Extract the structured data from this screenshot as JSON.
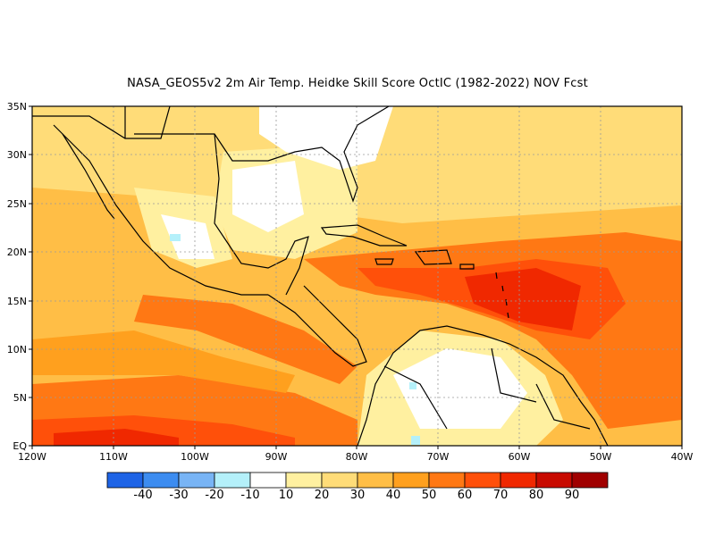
{
  "title": "NASA_GEOS5v2  2m Air Temp. Heidke Skill Score OctIC (1982-2022) NOV Fcst",
  "lat_labels": [
    "35N",
    "30N",
    "25N",
    "20N",
    "15N",
    "10N",
    "5N",
    "EQ"
  ],
  "lon_labels": [
    "120W",
    "110W",
    "100W",
    "90W",
    "80W",
    "70W",
    "60W",
    "50W",
    "40W"
  ],
  "colorbar": {
    "colors": [
      "#1e64e6",
      "#3c8cf0",
      "#78b4f5",
      "#b4f0fa",
      "#ffffff",
      "#fff0a0",
      "#ffdc78",
      "#ffbe46",
      "#ffa01e",
      "#ff7814",
      "#ff500a",
      "#f02800",
      "#c80a00",
      "#a00000"
    ],
    "labels": [
      "-40",
      "-30",
      "-20",
      "-10",
      "10",
      "20",
      "30",
      "40",
      "50",
      "60",
      "70",
      "80",
      "90"
    ]
  },
  "regions": {
    "background": "#ffbe46",
    "ocean_south": "#ff7814",
    "caribbean_hot": "#f02800",
    "land_white": "#ffffff",
    "land_pale": "#fff0a0",
    "coast": "#000000"
  }
}
